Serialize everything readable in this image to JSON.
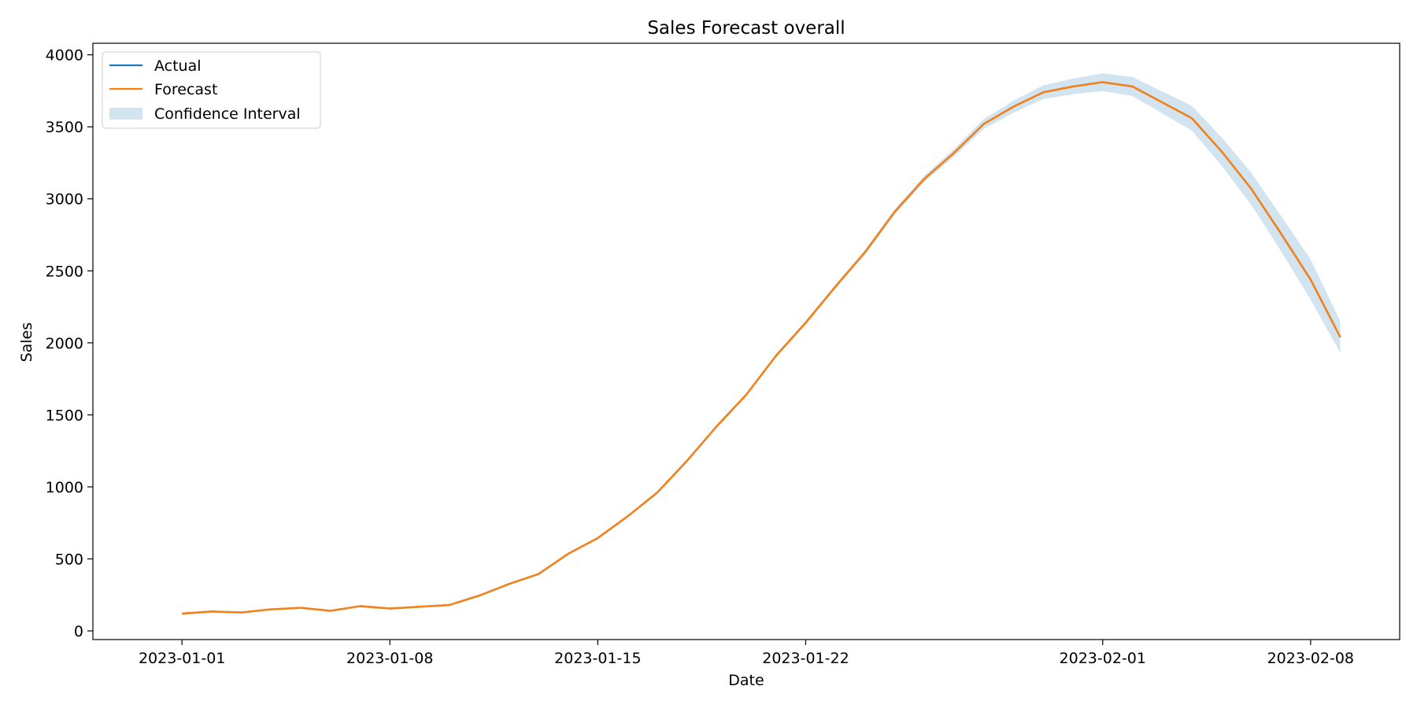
{
  "chart_data": {
    "type": "line",
    "title": "Sales Forecast overall",
    "xlabel": "Date",
    "ylabel": "Sales",
    "xlim": [
      "2022-12-29",
      "2023-02-11"
    ],
    "ylim": [
      -60,
      4080
    ],
    "x_ticks": [
      "2023-01-01",
      "2023-01-08",
      "2023-01-15",
      "2023-01-22",
      "2023-02-01",
      "2023-02-08"
    ],
    "y_ticks": [
      0,
      500,
      1000,
      1500,
      2000,
      2500,
      3000,
      3500,
      4000
    ],
    "legend": {
      "position": "top-left",
      "entries": [
        "Actual",
        "Forecast",
        "Confidence Interval"
      ]
    },
    "grid": false,
    "colors": {
      "actual": "#1f77b4",
      "forecast": "#ff7f0e",
      "ci": "#1f77b4"
    },
    "dates": [
      "2023-01-01",
      "2023-01-02",
      "2023-01-03",
      "2023-01-04",
      "2023-01-05",
      "2023-01-06",
      "2023-01-07",
      "2023-01-08",
      "2023-01-09",
      "2023-01-10",
      "2023-01-11",
      "2023-01-12",
      "2023-01-13",
      "2023-01-14",
      "2023-01-15",
      "2023-01-16",
      "2023-01-17",
      "2023-01-18",
      "2023-01-19",
      "2023-01-20",
      "2023-01-21",
      "2023-01-22",
      "2023-01-23",
      "2023-01-24",
      "2023-01-25",
      "2023-01-26",
      "2023-01-27",
      "2023-01-28",
      "2023-01-29",
      "2023-01-30",
      "2023-01-31",
      "2023-02-01",
      "2023-02-02",
      "2023-02-03",
      "2023-02-04",
      "2023-02-05",
      "2023-02-06",
      "2023-02-07",
      "2023-02-08",
      "2023-02-09"
    ],
    "series": [
      {
        "name": "Actual",
        "values": [
          120,
          135,
          128,
          150,
          160,
          140,
          172,
          155,
          168,
          180,
          245,
          325,
          395,
          535,
          645,
          795,
          960,
          1180,
          1420,
          1640,
          1910,
          2140,
          2390,
          2630,
          2910,
          3140,
          3320,
          3520,
          3640,
          3740,
          3780,
          3810,
          3780,
          3670,
          3560,
          3330,
          3070,
          2760,
          2440,
          2040
        ]
      },
      {
        "name": "Forecast",
        "values": [
          120,
          135,
          128,
          150,
          160,
          140,
          172,
          155,
          168,
          180,
          245,
          325,
          395,
          535,
          645,
          795,
          960,
          1180,
          1420,
          1640,
          1910,
          2140,
          2390,
          2630,
          2910,
          3140,
          3320,
          3520,
          3640,
          3740,
          3780,
          3810,
          3780,
          3670,
          3560,
          3330,
          3070,
          2760,
          2440,
          2040
        ]
      }
    ],
    "confidence_interval": {
      "name": "Confidence Interval",
      "lower": [
        118,
        133,
        126,
        148,
        158,
        138,
        170,
        153,
        166,
        178,
        242,
        322,
        391,
        530,
        640,
        789,
        953,
        1172,
        1411,
        1630,
        1898,
        2127,
        2376,
        2614,
        2893,
        3118,
        3294,
        3486,
        3598,
        3692,
        3726,
        3748,
        3714,
        3594,
        3474,
        3232,
        2958,
        2638,
        2300,
        1930
      ],
      "upper": [
        122,
        137,
        130,
        152,
        162,
        142,
        174,
        157,
        170,
        182,
        248,
        328,
        399,
        540,
        650,
        801,
        967,
        1188,
        1429,
        1650,
        1922,
        2153,
        2404,
        2646,
        2927,
        3162,
        3346,
        3554,
        3682,
        3788,
        3834,
        3872,
        3846,
        3746,
        3646,
        3428,
        3182,
        2882,
        2580,
        2150
      ]
    }
  }
}
